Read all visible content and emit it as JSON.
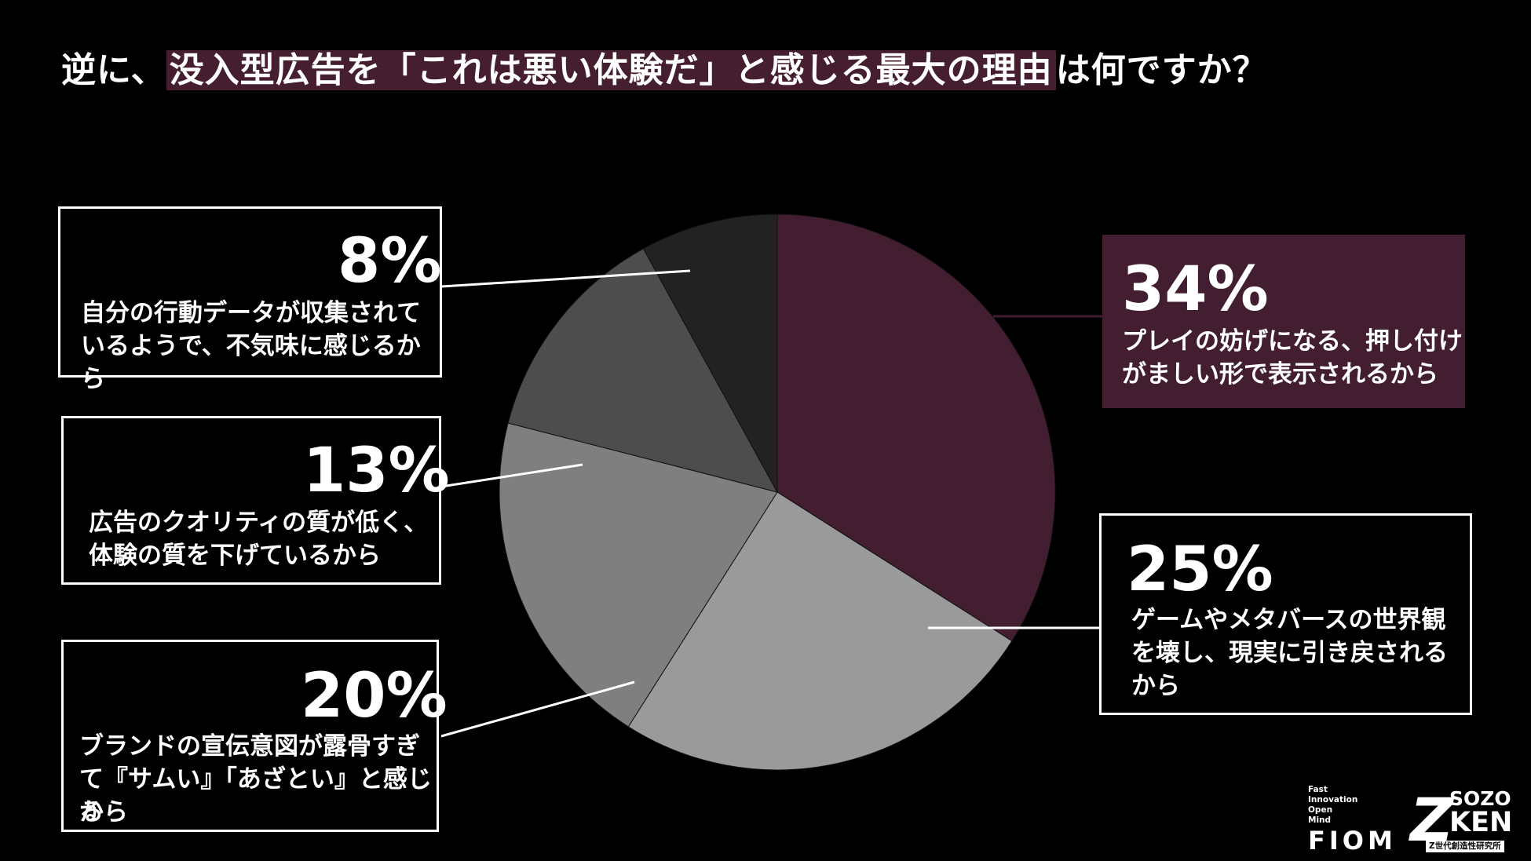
{
  "title": {
    "prefix": "逆に、",
    "highlight": "没入型広告を「これは悪い体験だ」と感じる最大の理由",
    "suffix": "は何ですか？"
  },
  "chart_data": {
    "type": "pie",
    "title": "逆に、没入型広告を「これは悪い体験だ」と感じる最大の理由は何ですか？",
    "slices": [
      {
        "percent_label": "34%",
        "value": 34,
        "label_lines": [
          "プレイの妨げになる、押し付け",
          "がましい形で表示されるから"
        ],
        "color": "#421e30"
      },
      {
        "percent_label": "25%",
        "value": 25,
        "label_lines": [
          "ゲームやメタバースの世界観",
          "を壊し、現実に引き戻される",
          "から"
        ],
        "color": "#9a9a9a"
      },
      {
        "percent_label": "20%",
        "value": 20,
        "label_lines": [
          "ブランドの宣伝意図が露骨すぎ",
          "て『サムい』「あざとい』と感じる",
          "から"
        ],
        "color": "#7f7f7f"
      },
      {
        "percent_label": "13%",
        "value": 13,
        "label_lines": [
          "広告のクオリティの質が低く、",
          "体験の質を下げているから"
        ],
        "color": "#4d4d4d"
      },
      {
        "percent_label": "8%",
        "value": 8,
        "label_lines": [
          "自分の行動データが収集されて",
          "いるようで、不気味に感じるから"
        ],
        "color": "#222222"
      }
    ]
  },
  "logos": {
    "fiom_words": [
      "Fast",
      "Innovation",
      "Open",
      "Mind"
    ],
    "fiom": "FIOM",
    "zken_z": "Z",
    "zken_sozo": "SOZO",
    "zken_ken": "KEN",
    "zken_sub": "Z世代創造性研究所"
  }
}
